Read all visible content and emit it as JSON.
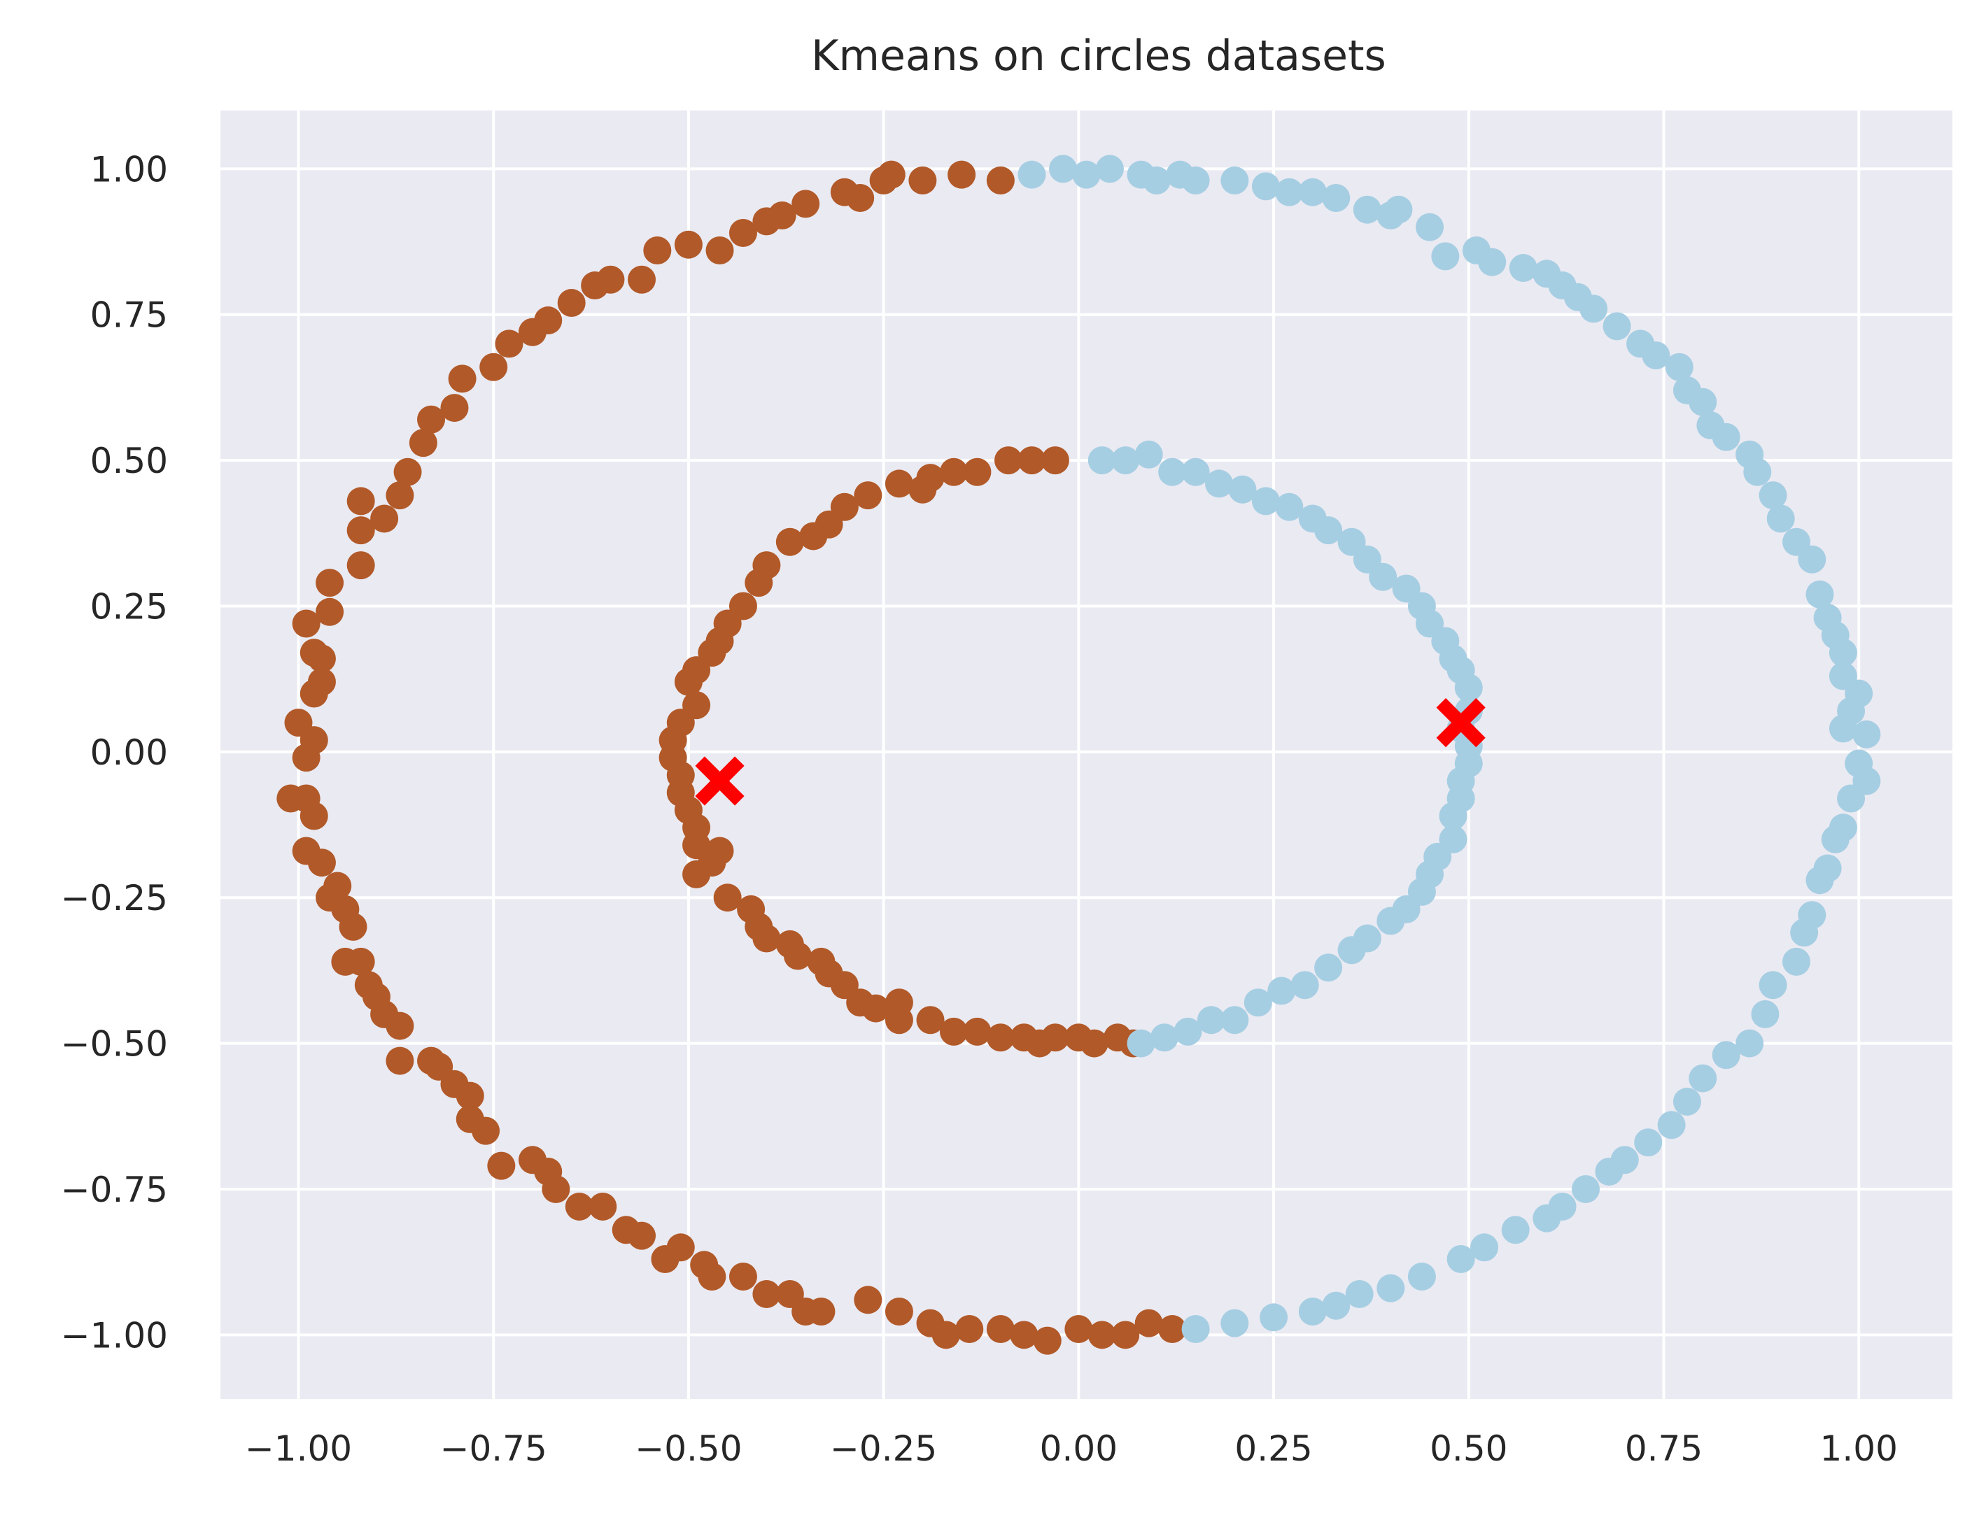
{
  "chart_data": {
    "type": "scatter",
    "title": "Kmeans on circles datasets",
    "xlabel": "",
    "ylabel": "",
    "xlim": [
      -1.1,
      1.12
    ],
    "ylim": [
      -1.11,
      1.1
    ],
    "grid": true,
    "legend": "none",
    "xticks": [
      -1.0,
      -0.75,
      -0.5,
      -0.25,
      0.0,
      0.25,
      0.5,
      0.75,
      1.0
    ],
    "yticks": [
      -1.0,
      -0.75,
      -0.5,
      -0.25,
      0.0,
      0.25,
      0.5,
      0.75,
      1.0
    ],
    "xtick_labels": [
      "−1.00",
      "−0.75",
      "−0.50",
      "−0.25",
      "0.00",
      "0.25",
      "0.50",
      "0.75",
      "1.00"
    ],
    "ytick_labels": [
      "−1.00",
      "−0.75",
      "−0.50",
      "−0.25",
      "0.00",
      "0.25",
      "0.50",
      "0.75",
      "1.00"
    ],
    "colors": {
      "background": "#eaeaf2",
      "grid": "#ffffff",
      "cluster_left": "#b15928",
      "cluster_right": "#a6cee3",
      "centroid": "#ff0000"
    },
    "series": [
      {
        "cluster": "left",
        "color": "#b15928",
        "points": [
          [
            -0.1,
            0.98
          ],
          [
            -0.15,
            0.99
          ],
          [
            -0.2,
            0.98
          ],
          [
            -0.24,
            0.99
          ],
          [
            -0.25,
            0.98
          ],
          [
            -0.28,
            0.95
          ],
          [
            -0.3,
            0.96
          ],
          [
            -0.35,
            0.94
          ],
          [
            -0.38,
            0.92
          ],
          [
            -0.4,
            0.91
          ],
          [
            -0.43,
            0.89
          ],
          [
            -0.46,
            0.86
          ],
          [
            -0.5,
            0.87
          ],
          [
            -0.54,
            0.86
          ],
          [
            -0.56,
            0.81
          ],
          [
            -0.6,
            0.81
          ],
          [
            -0.62,
            0.8
          ],
          [
            -0.65,
            0.77
          ],
          [
            -0.68,
            0.74
          ],
          [
            -0.7,
            0.72
          ],
          [
            -0.73,
            0.7
          ],
          [
            -0.75,
            0.66
          ],
          [
            -0.79,
            0.64
          ],
          [
            -0.8,
            0.59
          ],
          [
            -0.83,
            0.57
          ],
          [
            -0.84,
            0.53
          ],
          [
            -0.86,
            0.48
          ],
          [
            -0.87,
            0.44
          ],
          [
            -0.89,
            0.4
          ],
          [
            -0.92,
            0.43
          ],
          [
            -0.92,
            0.38
          ],
          [
            -0.92,
            0.32
          ],
          [
            -0.96,
            0.29
          ],
          [
            -0.96,
            0.24
          ],
          [
            -0.99,
            0.22
          ],
          [
            -0.98,
            0.17
          ],
          [
            -0.97,
            0.16
          ],
          [
            -0.97,
            0.12
          ],
          [
            -0.98,
            0.1
          ],
          [
            -1.0,
            0.05
          ],
          [
            -0.98,
            0.02
          ],
          [
            -0.99,
            -0.01
          ],
          [
            -1.01,
            -0.08
          ],
          [
            -0.99,
            -0.08
          ],
          [
            -0.98,
            -0.11
          ],
          [
            -0.99,
            -0.17
          ],
          [
            -0.97,
            -0.19
          ],
          [
            -0.95,
            -0.23
          ],
          [
            -0.96,
            -0.25
          ],
          [
            -0.94,
            -0.27
          ],
          [
            -0.93,
            -0.3
          ],
          [
            -0.94,
            -0.36
          ],
          [
            -0.92,
            -0.36
          ],
          [
            -0.91,
            -0.4
          ],
          [
            -0.9,
            -0.42
          ],
          [
            -0.89,
            -0.45
          ],
          [
            -0.87,
            -0.47
          ],
          [
            -0.87,
            -0.53
          ],
          [
            -0.83,
            -0.53
          ],
          [
            -0.82,
            -0.54
          ],
          [
            -0.8,
            -0.57
          ],
          [
            -0.78,
            -0.59
          ],
          [
            -0.78,
            -0.63
          ],
          [
            -0.76,
            -0.65
          ],
          [
            -0.74,
            -0.71
          ],
          [
            -0.7,
            -0.7
          ],
          [
            -0.68,
            -0.72
          ],
          [
            -0.67,
            -0.75
          ],
          [
            -0.64,
            -0.78
          ],
          [
            -0.61,
            -0.78
          ],
          [
            -0.58,
            -0.82
          ],
          [
            -0.56,
            -0.83
          ],
          [
            -0.53,
            -0.87
          ],
          [
            -0.51,
            -0.85
          ],
          [
            -0.48,
            -0.88
          ],
          [
            -0.47,
            -0.9
          ],
          [
            -0.43,
            -0.9
          ],
          [
            -0.4,
            -0.93
          ],
          [
            -0.37,
            -0.93
          ],
          [
            -0.33,
            -0.96
          ],
          [
            -0.35,
            -0.96
          ],
          [
            -0.27,
            -0.94
          ],
          [
            -0.23,
            -0.96
          ],
          [
            -0.19,
            -0.98
          ],
          [
            -0.17,
            -1.0
          ],
          [
            -0.14,
            -0.99
          ],
          [
            -0.1,
            -0.99
          ],
          [
            -0.07,
            -1.0
          ],
          [
            -0.04,
            -1.01
          ],
          [
            0.0,
            -0.99
          ],
          [
            0.03,
            -1.0
          ],
          [
            0.06,
            -1.0
          ],
          [
            0.09,
            -0.98
          ],
          [
            0.12,
            -0.99
          ],
          [
            -0.03,
            0.5
          ],
          [
            -0.06,
            0.5
          ],
          [
            -0.09,
            0.5
          ],
          [
            -0.13,
            0.48
          ],
          [
            -0.16,
            0.48
          ],
          [
            -0.19,
            0.47
          ],
          [
            -0.2,
            0.45
          ],
          [
            -0.23,
            0.46
          ],
          [
            -0.27,
            0.44
          ],
          [
            -0.3,
            0.42
          ],
          [
            -0.32,
            0.39
          ],
          [
            -0.34,
            0.37
          ],
          [
            -0.37,
            0.36
          ],
          [
            -0.4,
            0.32
          ],
          [
            -0.41,
            0.29
          ],
          [
            -0.43,
            0.25
          ],
          [
            -0.45,
            0.22
          ],
          [
            -0.46,
            0.19
          ],
          [
            -0.47,
            0.17
          ],
          [
            -0.49,
            0.14
          ],
          [
            -0.5,
            0.12
          ],
          [
            -0.49,
            0.08
          ],
          [
            -0.51,
            0.05
          ],
          [
            -0.52,
            0.02
          ],
          [
            -0.52,
            -0.01
          ],
          [
            -0.51,
            -0.04
          ],
          [
            -0.51,
            -0.07
          ],
          [
            -0.5,
            -0.1
          ],
          [
            -0.49,
            -0.13
          ],
          [
            -0.49,
            -0.16
          ],
          [
            -0.47,
            -0.19
          ],
          [
            -0.46,
            -0.17
          ],
          [
            -0.49,
            -0.21
          ],
          [
            -0.45,
            -0.25
          ],
          [
            -0.42,
            -0.27
          ],
          [
            -0.41,
            -0.3
          ],
          [
            -0.4,
            -0.32
          ],
          [
            -0.37,
            -0.33
          ],
          [
            -0.36,
            -0.35
          ],
          [
            -0.33,
            -0.36
          ],
          [
            -0.32,
            -0.38
          ],
          [
            -0.3,
            -0.4
          ],
          [
            -0.28,
            -0.43
          ],
          [
            -0.26,
            -0.44
          ],
          [
            -0.23,
            -0.43
          ],
          [
            -0.23,
            -0.46
          ],
          [
            -0.19,
            -0.46
          ],
          [
            -0.16,
            -0.48
          ],
          [
            -0.13,
            -0.48
          ],
          [
            -0.1,
            -0.49
          ],
          [
            -0.07,
            -0.49
          ],
          [
            -0.05,
            -0.5
          ],
          [
            -0.03,
            -0.49
          ],
          [
            0.0,
            -0.49
          ],
          [
            0.02,
            -0.5
          ],
          [
            0.05,
            -0.49
          ],
          [
            0.07,
            -0.5
          ]
        ]
      },
      {
        "cluster": "right",
        "color": "#a6cee3",
        "points": [
          [
            -0.06,
            0.99
          ],
          [
            -0.02,
            1.0
          ],
          [
            0.01,
            0.99
          ],
          [
            0.04,
            1.0
          ],
          [
            0.08,
            0.99
          ],
          [
            0.1,
            0.98
          ],
          [
            0.13,
            0.99
          ],
          [
            0.15,
            0.98
          ],
          [
            0.2,
            0.98
          ],
          [
            0.24,
            0.97
          ],
          [
            0.27,
            0.96
          ],
          [
            0.3,
            0.96
          ],
          [
            0.33,
            0.95
          ],
          [
            0.37,
            0.93
          ],
          [
            0.4,
            0.92
          ],
          [
            0.41,
            0.93
          ],
          [
            0.45,
            0.9
          ],
          [
            0.47,
            0.85
          ],
          [
            0.51,
            0.86
          ],
          [
            0.53,
            0.84
          ],
          [
            0.57,
            0.83
          ],
          [
            0.6,
            0.82
          ],
          [
            0.62,
            0.8
          ],
          [
            0.64,
            0.78
          ],
          [
            0.66,
            0.76
          ],
          [
            0.69,
            0.73
          ],
          [
            0.72,
            0.7
          ],
          [
            0.74,
            0.68
          ],
          [
            0.77,
            0.66
          ],
          [
            0.78,
            0.62
          ],
          [
            0.8,
            0.6
          ],
          [
            0.81,
            0.56
          ],
          [
            0.83,
            0.54
          ],
          [
            0.86,
            0.51
          ],
          [
            0.87,
            0.48
          ],
          [
            0.89,
            0.44
          ],
          [
            0.9,
            0.4
          ],
          [
            0.92,
            0.36
          ],
          [
            0.94,
            0.33
          ],
          [
            0.95,
            0.27
          ],
          [
            0.96,
            0.23
          ],
          [
            0.97,
            0.2
          ],
          [
            0.98,
            0.17
          ],
          [
            0.98,
            0.13
          ],
          [
            1.0,
            0.1
          ],
          [
            0.99,
            0.07
          ],
          [
            0.98,
            0.04
          ],
          [
            1.01,
            0.03
          ],
          [
            1.0,
            -0.02
          ],
          [
            1.01,
            -0.05
          ],
          [
            0.99,
            -0.08
          ],
          [
            0.98,
            -0.13
          ],
          [
            0.97,
            -0.15
          ],
          [
            0.96,
            -0.2
          ],
          [
            0.95,
            -0.22
          ],
          [
            0.94,
            -0.28
          ],
          [
            0.93,
            -0.31
          ],
          [
            0.92,
            -0.36
          ],
          [
            0.89,
            -0.4
          ],
          [
            0.88,
            -0.45
          ],
          [
            0.86,
            -0.5
          ],
          [
            0.83,
            -0.52
          ],
          [
            0.8,
            -0.56
          ],
          [
            0.78,
            -0.6
          ],
          [
            0.76,
            -0.64
          ],
          [
            0.73,
            -0.67
          ],
          [
            0.7,
            -0.7
          ],
          [
            0.68,
            -0.72
          ],
          [
            0.65,
            -0.75
          ],
          [
            0.62,
            -0.78
          ],
          [
            0.6,
            -0.8
          ],
          [
            0.56,
            -0.82
          ],
          [
            0.52,
            -0.85
          ],
          [
            0.49,
            -0.87
          ],
          [
            0.44,
            -0.9
          ],
          [
            0.4,
            -0.92
          ],
          [
            0.36,
            -0.93
          ],
          [
            0.33,
            -0.95
          ],
          [
            0.3,
            -0.96
          ],
          [
            0.25,
            -0.97
          ],
          [
            0.2,
            -0.98
          ],
          [
            0.15,
            -0.99
          ],
          [
            0.03,
            0.5
          ],
          [
            0.06,
            0.5
          ],
          [
            0.09,
            0.51
          ],
          [
            0.12,
            0.48
          ],
          [
            0.15,
            0.48
          ],
          [
            0.18,
            0.46
          ],
          [
            0.21,
            0.45
          ],
          [
            0.24,
            0.43
          ],
          [
            0.27,
            0.42
          ],
          [
            0.3,
            0.4
          ],
          [
            0.32,
            0.38
          ],
          [
            0.35,
            0.36
          ],
          [
            0.37,
            0.33
          ],
          [
            0.39,
            0.3
          ],
          [
            0.42,
            0.28
          ],
          [
            0.44,
            0.25
          ],
          [
            0.45,
            0.22
          ],
          [
            0.47,
            0.19
          ],
          [
            0.48,
            0.16
          ],
          [
            0.49,
            0.14
          ],
          [
            0.5,
            0.11
          ],
          [
            0.5,
            0.07
          ],
          [
            0.49,
            0.04
          ],
          [
            0.5,
            0.01
          ],
          [
            0.5,
            -0.02
          ],
          [
            0.49,
            -0.05
          ],
          [
            0.49,
            -0.08
          ],
          [
            0.48,
            -0.11
          ],
          [
            0.48,
            -0.15
          ],
          [
            0.46,
            -0.18
          ],
          [
            0.45,
            -0.21
          ],
          [
            0.44,
            -0.24
          ],
          [
            0.42,
            -0.27
          ],
          [
            0.4,
            -0.29
          ],
          [
            0.37,
            -0.32
          ],
          [
            0.35,
            -0.34
          ],
          [
            0.32,
            -0.37
          ],
          [
            0.29,
            -0.4
          ],
          [
            0.26,
            -0.41
          ],
          [
            0.23,
            -0.43
          ],
          [
            0.2,
            -0.46
          ],
          [
            0.17,
            -0.46
          ],
          [
            0.14,
            -0.48
          ],
          [
            0.11,
            -0.49
          ],
          [
            0.08,
            -0.5
          ]
        ]
      }
    ],
    "centroids": [
      [
        -0.46,
        -0.05
      ],
      [
        0.49,
        0.05
      ]
    ]
  }
}
